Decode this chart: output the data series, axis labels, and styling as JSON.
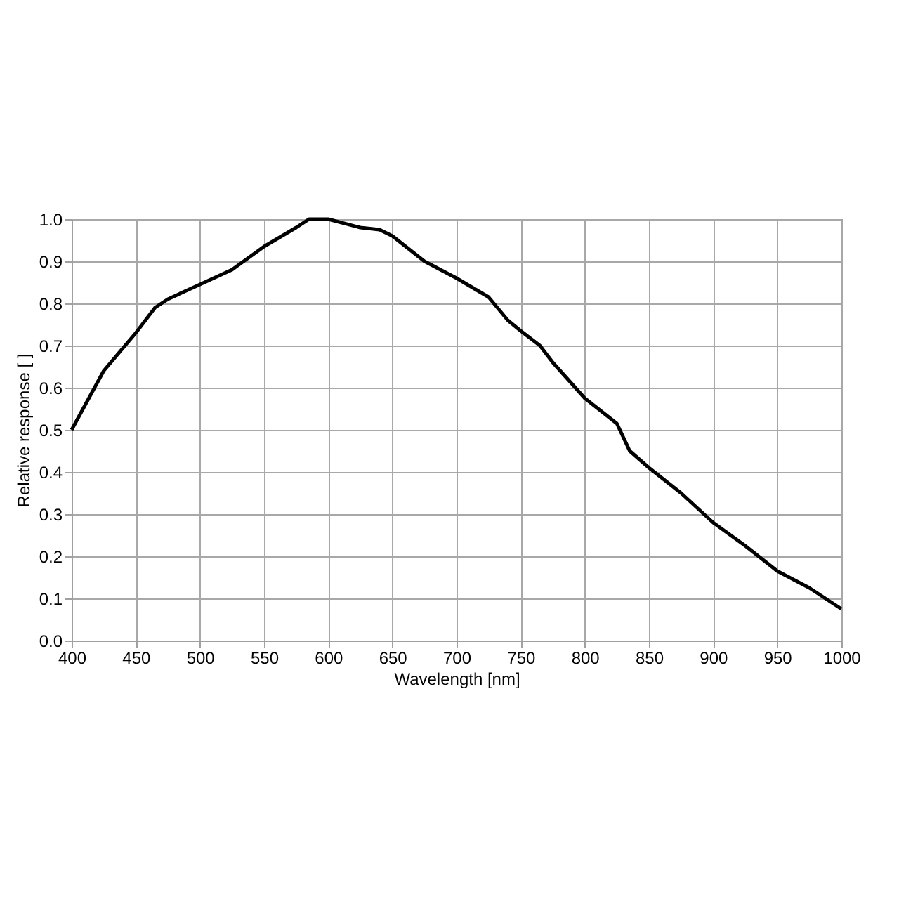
{
  "chart_data": {
    "type": "line",
    "xlabel": "Wavelength [nm]",
    "ylabel": "Relative response [ ]",
    "x": [
      400,
      425,
      450,
      465,
      475,
      500,
      525,
      550,
      575,
      585,
      600,
      625,
      640,
      650,
      675,
      700,
      725,
      740,
      750,
      765,
      775,
      800,
      825,
      835,
      850,
      875,
      900,
      925,
      950,
      975,
      1000
    ],
    "series": [
      {
        "color": "#000000",
        "values": [
          0.5,
          0.64,
          0.73,
          0.79,
          0.81,
          0.845,
          0.88,
          0.935,
          0.98,
          1.0,
          1.0,
          0.98,
          0.975,
          0.96,
          0.9,
          0.86,
          0.815,
          0.76,
          0.735,
          0.7,
          0.66,
          0.575,
          0.515,
          0.45,
          0.41,
          0.35,
          0.28,
          0.225,
          0.165,
          0.125,
          0.075
        ]
      }
    ],
    "xlim": [
      400,
      1000
    ],
    "xticks": [
      400,
      450,
      500,
      550,
      600,
      650,
      700,
      750,
      800,
      850,
      900,
      950,
      1000
    ],
    "ylim": [
      0,
      1
    ],
    "yticks": [
      {
        "value": 0,
        "label": "0.0"
      },
      {
        "value": 0.1,
        "label": "0.1"
      },
      {
        "value": 0.2,
        "label": "0.2"
      },
      {
        "value": 0.3,
        "label": "0.3"
      },
      {
        "value": 0.4,
        "label": "0.4"
      },
      {
        "value": 0.5,
        "label": "0.5"
      },
      {
        "value": 0.6,
        "label": "0.6"
      },
      {
        "value": 0.7,
        "label": "0.7"
      },
      {
        "value": 0.8,
        "label": "0.8"
      },
      {
        "value": 0.9,
        "label": "0.9"
      },
      {
        "value": 1,
        "label": "1.0"
      }
    ],
    "grid": true,
    "marker": "none",
    "line_style": "solid"
  }
}
